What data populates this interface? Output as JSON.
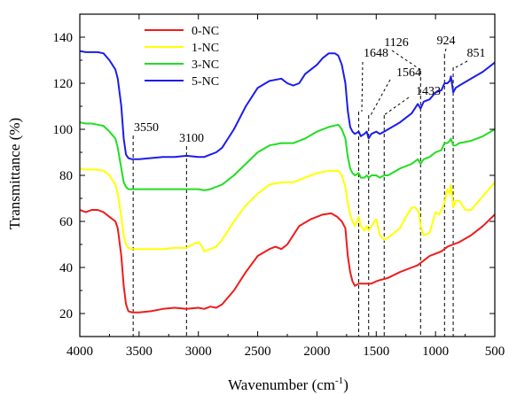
{
  "chart_data": {
    "type": "line",
    "xlabel": "Wavenumber (cm",
    "xlabel_sup": "-1",
    "xlabel_end": ")",
    "ylabel": "Transmittance (%)",
    "xlim": [
      4000,
      500
    ],
    "ylim": [
      10,
      150
    ],
    "x_ticks": [
      4000,
      3500,
      3000,
      2500,
      2000,
      1500,
      1000,
      500
    ],
    "y_ticks": [
      20,
      40,
      60,
      80,
      100,
      120,
      140
    ],
    "x_tick_labels": [
      "4000",
      "3500",
      "3000",
      "2500",
      "2000",
      "1500",
      "1000",
      "500"
    ],
    "y_tick_labels": [
      "20",
      "40",
      "60",
      "80",
      "100",
      "120",
      "140"
    ],
    "legend_position": "top-left",
    "series": [
      {
        "name": "0-NC",
        "color": "#ee1c1c",
        "points": [
          [
            4000,
            65
          ],
          [
            3950,
            64
          ],
          [
            3900,
            65
          ],
          [
            3850,
            65
          ],
          [
            3800,
            64
          ],
          [
            3750,
            62
          ],
          [
            3700,
            60
          ],
          [
            3680,
            57
          ],
          [
            3650,
            45
          ],
          [
            3630,
            32
          ],
          [
            3610,
            24
          ],
          [
            3590,
            21
          ],
          [
            3560,
            20.5
          ],
          [
            3500,
            20.5
          ],
          [
            3400,
            21
          ],
          [
            3300,
            22
          ],
          [
            3200,
            22.5
          ],
          [
            3100,
            22
          ],
          [
            3000,
            22.5
          ],
          [
            2950,
            22
          ],
          [
            2900,
            23
          ],
          [
            2850,
            22.5
          ],
          [
            2800,
            24
          ],
          [
            2700,
            30
          ],
          [
            2600,
            38
          ],
          [
            2500,
            45
          ],
          [
            2400,
            48
          ],
          [
            2350,
            49
          ],
          [
            2300,
            48
          ],
          [
            2250,
            50
          ],
          [
            2150,
            58
          ],
          [
            2050,
            61
          ],
          [
            1950,
            63
          ],
          [
            1880,
            63.5
          ],
          [
            1830,
            62
          ],
          [
            1790,
            60
          ],
          [
            1760,
            57
          ],
          [
            1740,
            45
          ],
          [
            1720,
            38
          ],
          [
            1700,
            34
          ],
          [
            1680,
            32
          ],
          [
            1648,
            33
          ],
          [
            1620,
            33
          ],
          [
            1580,
            33
          ],
          [
            1560,
            33
          ],
          [
            1540,
            33
          ],
          [
            1500,
            34
          ],
          [
            1470,
            34.5
          ],
          [
            1433,
            35
          ],
          [
            1400,
            35.5
          ],
          [
            1300,
            38
          ],
          [
            1200,
            40
          ],
          [
            1150,
            41
          ],
          [
            1100,
            43
          ],
          [
            1050,
            45
          ],
          [
            1000,
            46
          ],
          [
            950,
            47
          ],
          [
            924,
            48
          ],
          [
            900,
            49
          ],
          [
            851,
            50
          ],
          [
            800,
            51
          ],
          [
            700,
            54
          ],
          [
            600,
            58
          ],
          [
            500,
            63
          ]
        ]
      },
      {
        "name": "1-NC",
        "color": "#ffff00",
        "points": [
          [
            4000,
            83
          ],
          [
            3950,
            82.5
          ],
          [
            3900,
            82.5
          ],
          [
            3850,
            82.5
          ],
          [
            3800,
            82
          ],
          [
            3750,
            80
          ],
          [
            3700,
            76
          ],
          [
            3680,
            72
          ],
          [
            3650,
            62
          ],
          [
            3630,
            54
          ],
          [
            3610,
            50
          ],
          [
            3590,
            48.5
          ],
          [
            3560,
            48
          ],
          [
            3500,
            48
          ],
          [
            3400,
            48
          ],
          [
            3300,
            48
          ],
          [
            3200,
            48.5
          ],
          [
            3100,
            48.5
          ],
          [
            3050,
            50
          ],
          [
            3000,
            51
          ],
          [
            2980,
            50
          ],
          [
            2950,
            47
          ],
          [
            2900,
            48
          ],
          [
            2850,
            49
          ],
          [
            2800,
            52
          ],
          [
            2700,
            60
          ],
          [
            2600,
            67
          ],
          [
            2500,
            72
          ],
          [
            2400,
            76
          ],
          [
            2300,
            77
          ],
          [
            2200,
            77
          ],
          [
            2100,
            79
          ],
          [
            2000,
            81
          ],
          [
            1900,
            82
          ],
          [
            1820,
            82
          ],
          [
            1790,
            80
          ],
          [
            1760,
            75
          ],
          [
            1740,
            68
          ],
          [
            1720,
            63
          ],
          [
            1700,
            60
          ],
          [
            1680,
            58
          ],
          [
            1648,
            62
          ],
          [
            1630,
            58
          ],
          [
            1600,
            56
          ],
          [
            1580,
            58
          ],
          [
            1564,
            56
          ],
          [
            1540,
            58
          ],
          [
            1500,
            61
          ],
          [
            1470,
            54
          ],
          [
            1433,
            52
          ],
          [
            1400,
            53
          ],
          [
            1300,
            57
          ],
          [
            1250,
            62
          ],
          [
            1200,
            66
          ],
          [
            1170,
            66
          ],
          [
            1140,
            64
          ],
          [
            1126,
            58
          ],
          [
            1100,
            54
          ],
          [
            1050,
            55
          ],
          [
            1000,
            64
          ],
          [
            970,
            63
          ],
          [
            924,
            68
          ],
          [
            900,
            74
          ],
          [
            880,
            72
          ],
          [
            870,
            76
          ],
          [
            851,
            66
          ],
          [
            830,
            69
          ],
          [
            800,
            69
          ],
          [
            750,
            65
          ],
          [
            700,
            65
          ],
          [
            650,
            68
          ],
          [
            600,
            71
          ],
          [
            550,
            74
          ],
          [
            500,
            77
          ]
        ]
      },
      {
        "name": "3-NC",
        "color": "#22dd22",
        "points": [
          [
            4000,
            103
          ],
          [
            3950,
            102.5
          ],
          [
            3900,
            102.5
          ],
          [
            3850,
            102
          ],
          [
            3800,
            101.5
          ],
          [
            3750,
            99
          ],
          [
            3700,
            96
          ],
          [
            3680,
            92
          ],
          [
            3650,
            83
          ],
          [
            3630,
            77
          ],
          [
            3610,
            75
          ],
          [
            3590,
            74
          ],
          [
            3560,
            74
          ],
          [
            3500,
            74
          ],
          [
            3400,
            74
          ],
          [
            3300,
            74
          ],
          [
            3200,
            74
          ],
          [
            3100,
            74
          ],
          [
            3000,
            74
          ],
          [
            2950,
            73.5
          ],
          [
            2900,
            74
          ],
          [
            2850,
            75
          ],
          [
            2800,
            76
          ],
          [
            2700,
            80
          ],
          [
            2600,
            85
          ],
          [
            2500,
            90
          ],
          [
            2400,
            93
          ],
          [
            2300,
            94
          ],
          [
            2200,
            94
          ],
          [
            2100,
            96
          ],
          [
            2000,
            99
          ],
          [
            1900,
            101
          ],
          [
            1820,
            102
          ],
          [
            1790,
            100
          ],
          [
            1760,
            96
          ],
          [
            1740,
            88
          ],
          [
            1720,
            83
          ],
          [
            1700,
            81
          ],
          [
            1680,
            80
          ],
          [
            1648,
            81
          ],
          [
            1630,
            79
          ],
          [
            1600,
            79
          ],
          [
            1580,
            80
          ],
          [
            1564,
            79
          ],
          [
            1540,
            80
          ],
          [
            1500,
            80
          ],
          [
            1470,
            79
          ],
          [
            1433,
            80
          ],
          [
            1400,
            80
          ],
          [
            1300,
            83
          ],
          [
            1200,
            85
          ],
          [
            1150,
            87
          ],
          [
            1126,
            85
          ],
          [
            1100,
            87
          ],
          [
            1050,
            88
          ],
          [
            1000,
            90
          ],
          [
            950,
            91
          ],
          [
            924,
            94
          ],
          [
            900,
            94
          ],
          [
            880,
            95
          ],
          [
            870,
            96
          ],
          [
            851,
            93
          ],
          [
            830,
            93
          ],
          [
            800,
            94
          ],
          [
            700,
            95
          ],
          [
            600,
            97
          ],
          [
            500,
            100
          ]
        ]
      },
      {
        "name": "5-NC",
        "color": "#1c1cee",
        "points": [
          [
            4000,
            134
          ],
          [
            3950,
            133.5
          ],
          [
            3900,
            133.5
          ],
          [
            3850,
            133.5
          ],
          [
            3800,
            133
          ],
          [
            3750,
            130
          ],
          [
            3700,
            126
          ],
          [
            3680,
            122
          ],
          [
            3650,
            110
          ],
          [
            3630,
            96
          ],
          [
            3610,
            89
          ],
          [
            3590,
            87.5
          ],
          [
            3560,
            87
          ],
          [
            3500,
            87
          ],
          [
            3400,
            87.5
          ],
          [
            3300,
            88
          ],
          [
            3200,
            88
          ],
          [
            3100,
            88.5
          ],
          [
            3000,
            88
          ],
          [
            2950,
            88
          ],
          [
            2900,
            89
          ],
          [
            2850,
            90
          ],
          [
            2800,
            92
          ],
          [
            2700,
            100
          ],
          [
            2600,
            110
          ],
          [
            2500,
            118
          ],
          [
            2400,
            121
          ],
          [
            2300,
            122
          ],
          [
            2250,
            120
          ],
          [
            2200,
            119
          ],
          [
            2150,
            120
          ],
          [
            2100,
            124
          ],
          [
            2000,
            128
          ],
          [
            1950,
            131
          ],
          [
            1900,
            133
          ],
          [
            1850,
            133
          ],
          [
            1820,
            132
          ],
          [
            1790,
            128
          ],
          [
            1760,
            120
          ],
          [
            1740,
            108
          ],
          [
            1720,
            101
          ],
          [
            1700,
            99
          ],
          [
            1680,
            98
          ],
          [
            1648,
            99
          ],
          [
            1630,
            97
          ],
          [
            1600,
            98
          ],
          [
            1580,
            99
          ],
          [
            1564,
            96
          ],
          [
            1540,
            98
          ],
          [
            1500,
            99
          ],
          [
            1470,
            98
          ],
          [
            1433,
            99
          ],
          [
            1400,
            100
          ],
          [
            1300,
            103
          ],
          [
            1200,
            107
          ],
          [
            1150,
            111
          ],
          [
            1126,
            109
          ],
          [
            1100,
            112
          ],
          [
            1050,
            113
          ],
          [
            1000,
            116
          ],
          [
            950,
            117
          ],
          [
            924,
            120
          ],
          [
            900,
            120
          ],
          [
            880,
            121
          ],
          [
            870,
            123
          ],
          [
            851,
            116
          ],
          [
            830,
            118
          ],
          [
            800,
            119
          ],
          [
            700,
            122
          ],
          [
            600,
            125
          ],
          [
            500,
            129
          ]
        ]
      }
    ],
    "annotations": [
      {
        "label": "3550",
        "x": 3550
      },
      {
        "label": "3100",
        "x": 3100
      },
      {
        "label": "1648",
        "x": 1648
      },
      {
        "label": "1564",
        "x": 1564
      },
      {
        "label": "1433",
        "x": 1433
      },
      {
        "label": "1126",
        "x": 1126
      },
      {
        "label": "924",
        "x": 924
      },
      {
        "label": "851",
        "x": 851
      }
    ]
  }
}
